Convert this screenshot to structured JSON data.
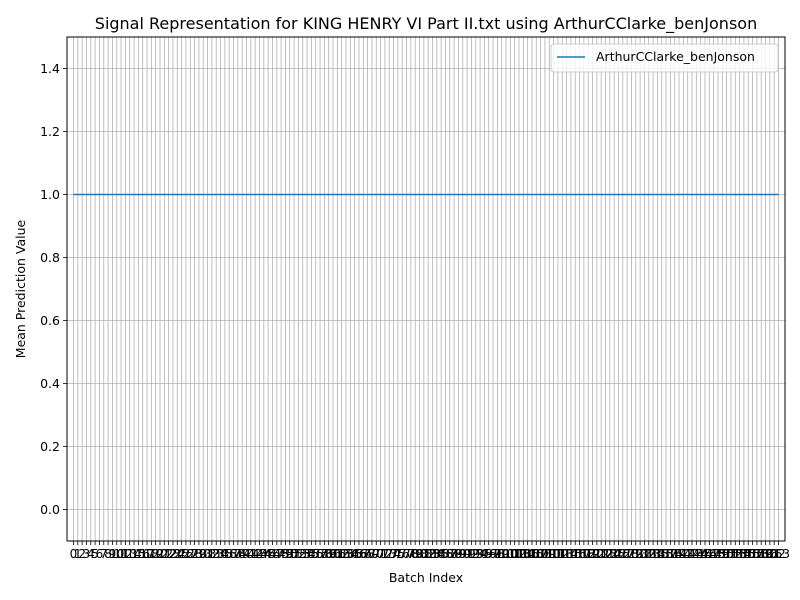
{
  "chart_data": {
    "type": "line",
    "title": "Signal Representation for KING HENRY VI Part II.txt using ArthurCClarke_benJonson",
    "xlabel": "Batch Index",
    "ylabel": "Mean Prediction Value",
    "xlim": [
      -1.5,
      164.5
    ],
    "ylim": [
      -0.1,
      1.5
    ],
    "yticks": [
      0.0,
      0.2,
      0.4,
      0.6,
      0.8,
      1.0,
      1.2,
      1.4
    ],
    "ytick_labels": [
      "0.0",
      "0.2",
      "0.4",
      "0.6",
      "0.8",
      "1.0",
      "1.2",
      "1.4"
    ],
    "xticks": [
      0,
      1,
      2,
      3,
      4,
      5,
      6,
      7,
      8,
      9,
      10,
      11,
      12,
      13,
      14,
      15,
      16,
      17,
      18,
      19,
      20,
      21,
      22,
      23,
      24,
      25,
      26,
      27,
      28,
      29,
      30,
      31,
      32,
      33,
      34,
      35,
      36,
      37,
      38,
      39,
      40,
      41,
      42,
      43,
      44,
      45,
      46,
      47,
      48,
      49,
      50,
      51,
      52,
      53,
      54,
      55,
      56,
      57,
      58,
      59,
      60,
      61,
      62,
      63,
      64,
      65,
      66,
      67,
      68,
      69,
      70,
      71,
      72,
      73,
      74,
      75,
      76,
      77,
      78,
      79,
      80,
      81,
      82,
      83,
      84,
      85,
      86,
      87,
      88,
      89,
      90,
      91,
      92,
      93,
      94,
      95,
      96,
      97,
      98,
      99,
      100,
      101,
      102,
      103,
      104,
      105,
      106,
      107,
      108,
      109,
      110,
      111,
      112,
      113,
      114,
      115,
      116,
      117,
      118,
      119,
      120,
      121,
      122,
      123,
      124,
      125,
      126,
      127,
      128,
      129,
      130,
      131,
      132,
      133,
      134,
      135,
      136,
      137,
      138,
      139,
      140,
      141,
      142,
      143,
      144,
      145,
      146,
      147,
      148,
      149,
      150,
      151,
      152,
      153,
      154,
      155,
      156,
      157,
      158,
      159,
      160,
      161,
      162,
      163
    ],
    "grid": true,
    "legend": "upper right",
    "series": [
      {
        "name": "ArthurCClarke_benJonson",
        "color": "#1f77b4",
        "x_start": 0,
        "x_end": 163,
        "value": 1.0
      }
    ]
  }
}
